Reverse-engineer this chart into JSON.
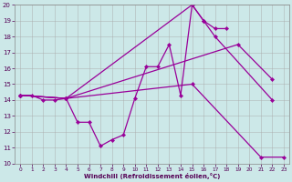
{
  "xlabel": "Windchill (Refroidissement éolien,°C)",
  "xlim": [
    -0.5,
    23.5
  ],
  "ylim": [
    10,
    20
  ],
  "xticks": [
    0,
    1,
    2,
    3,
    4,
    5,
    6,
    7,
    8,
    9,
    10,
    11,
    12,
    13,
    14,
    15,
    16,
    17,
    18,
    19,
    20,
    21,
    22,
    23
  ],
  "yticks": [
    10,
    11,
    12,
    13,
    14,
    15,
    16,
    17,
    18,
    19,
    20
  ],
  "background_color": "#cce8e8",
  "line_color": "#990099",
  "grid_color": "#aaaaaa",
  "series": [
    {
      "x": [
        0,
        1,
        2,
        3,
        4,
        5,
        6,
        7,
        8,
        9,
        10,
        11,
        12,
        13,
        14,
        15,
        16,
        17,
        18
      ],
      "y": [
        14.3,
        14.3,
        14.0,
        14.0,
        14.1,
        12.6,
        12.6,
        11.1,
        11.5,
        11.8,
        14.1,
        16.1,
        16.1,
        17.5,
        14.3,
        20.0,
        19.0,
        18.5,
        18.5
      ]
    },
    {
      "x": [
        0,
        4,
        15,
        16,
        17,
        22
      ],
      "y": [
        14.3,
        14.1,
        20.0,
        19.0,
        18.0,
        14.0
      ]
    },
    {
      "x": [
        0,
        4,
        15,
        21,
        23
      ],
      "y": [
        14.3,
        14.1,
        15.0,
        10.4,
        10.4
      ]
    },
    {
      "x": [
        0,
        4,
        19,
        22
      ],
      "y": [
        14.3,
        14.1,
        17.5,
        15.3
      ]
    }
  ]
}
